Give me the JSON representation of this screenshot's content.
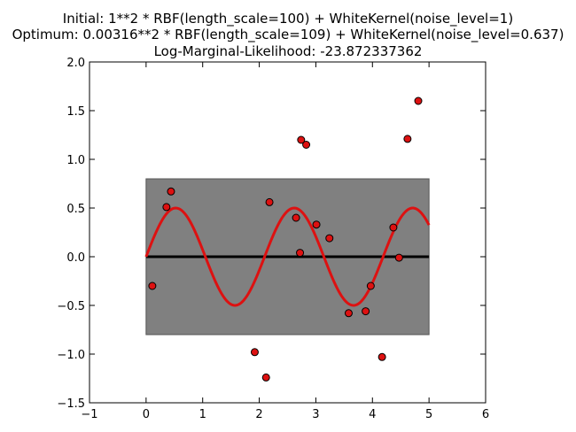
{
  "chart_data": {
    "type": "scatter",
    "title_lines": [
      "Initial: 1**2 * RBF(length_scale=100) + WhiteKernel(noise_level=1)",
      "Optimum: 0.00316**2 * RBF(length_scale=109) + WhiteKernel(noise_level=0.637)",
      "Log-Marginal-Likelihood: -23.872337362"
    ],
    "xlim": [
      -1,
      6
    ],
    "ylim": [
      -1.5,
      2.0
    ],
    "xticks": [
      -1,
      0,
      1,
      2,
      3,
      4,
      5,
      6
    ],
    "xtick_labels": [
      "−1",
      "0",
      "1",
      "2",
      "3",
      "4",
      "5",
      "6"
    ],
    "yticks": [
      -1.5,
      -1.0,
      -0.5,
      0.0,
      0.5,
      1.0,
      1.5,
      2.0
    ],
    "ytick_labels": [
      "−1.5",
      "−1.0",
      "−0.5",
      "0.0",
      "0.5",
      "1.0",
      "1.5",
      "2.0"
    ],
    "grid": false,
    "confidence_band": {
      "x": [
        0,
        5
      ],
      "lower": -0.8,
      "upper": 0.8,
      "color": "#808080"
    },
    "mean_line": {
      "x": [
        0,
        5
      ],
      "y": [
        0,
        0
      ],
      "color": "#000000"
    },
    "true_function": {
      "expression": "0.5*sin(3x)",
      "x_range": [
        0,
        5
      ],
      "color": "#dd1111"
    },
    "points": [
      {
        "x": 0.11,
        "y": -0.3
      },
      {
        "x": 0.36,
        "y": 0.51
      },
      {
        "x": 0.44,
        "y": 0.67
      },
      {
        "x": 1.92,
        "y": -0.98
      },
      {
        "x": 2.12,
        "y": -1.24
      },
      {
        "x": 2.18,
        "y": 0.56
      },
      {
        "x": 2.65,
        "y": 0.4
      },
      {
        "x": 2.72,
        "y": 0.04
      },
      {
        "x": 2.74,
        "y": 1.2
      },
      {
        "x": 2.83,
        "y": 1.15
      },
      {
        "x": 3.01,
        "y": 0.33
      },
      {
        "x": 3.24,
        "y": 0.19
      },
      {
        "x": 3.58,
        "y": -0.58
      },
      {
        "x": 3.88,
        "y": -0.56
      },
      {
        "x": 3.97,
        "y": -0.3
      },
      {
        "x": 4.17,
        "y": -1.03
      },
      {
        "x": 4.37,
        "y": 0.3
      },
      {
        "x": 4.47,
        "y": -0.01
      },
      {
        "x": 4.62,
        "y": 1.21
      },
      {
        "x": 4.81,
        "y": 1.6
      }
    ],
    "point_color": "#dd1111"
  }
}
